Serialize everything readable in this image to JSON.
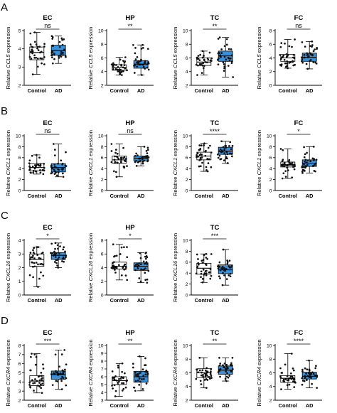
{
  "figure": {
    "panels": [
      {
        "letter": "A",
        "gene": "CCL5"
      },
      {
        "letter": "B",
        "gene": "CXCL1"
      },
      {
        "letter": "C",
        "gene": "CXCL16"
      },
      {
        "letter": "D",
        "gene": "CXCR4"
      }
    ],
    "ylabel_prefix": "Relative",
    "ylabel_suffix": "expression",
    "colors": {
      "control_box": "#ffffff",
      "ad_box": "#3a8fd6",
      "points": "#111111"
    }
  },
  "chart_data": [
    {
      "type": "box",
      "row": "A",
      "title": "EC",
      "significance": "ns",
      "gene": "CCL5",
      "ylim": [
        2,
        5
      ],
      "yticks": [
        2,
        3,
        4,
        5
      ],
      "categories": [
        "Control",
        "AD"
      ],
      "series": [
        {
          "name": "Control",
          "whisker_low": 2.6,
          "q1": 3.4,
          "median": 3.8,
          "q3": 4.1,
          "whisker_high": 4.9
        },
        {
          "name": "AD",
          "whisker_low": 3.2,
          "q1": 3.65,
          "median": 3.9,
          "q3": 4.2,
          "whisker_high": 4.7
        }
      ]
    },
    {
      "type": "box",
      "row": "A",
      "title": "HP",
      "significance": "**",
      "gene": "CCL5",
      "ylim": [
        2,
        10
      ],
      "yticks": [
        2,
        4,
        6,
        8,
        10
      ],
      "categories": [
        "Control",
        "AD"
      ],
      "series": [
        {
          "name": "Control",
          "whisker_low": 3.5,
          "q1": 4.2,
          "median": 4.6,
          "q3": 5.0,
          "whisker_high": 6.1
        },
        {
          "name": "AD",
          "whisker_low": 3.5,
          "q1": 4.5,
          "median": 5.1,
          "q3": 5.6,
          "whisker_high": 7.9
        }
      ]
    },
    {
      "type": "box",
      "row": "A",
      "title": "TC",
      "significance": "**",
      "gene": "CCL5",
      "ylim": [
        2,
        10
      ],
      "yticks": [
        2,
        4,
        6,
        8,
        10
      ],
      "categories": [
        "Control",
        "AD"
      ],
      "series": [
        {
          "name": "Control",
          "whisker_low": 3.5,
          "q1": 4.9,
          "median": 5.4,
          "q3": 6.0,
          "whisker_high": 7.0
        },
        {
          "name": "AD",
          "whisker_low": 3.2,
          "q1": 5.5,
          "median": 6.3,
          "q3": 7.0,
          "whisker_high": 9.0
        }
      ]
    },
    {
      "type": "box",
      "row": "A",
      "title": "FC",
      "significance": "ns",
      "gene": "CCL5",
      "ylim": [
        0,
        8
      ],
      "yticks": [
        0,
        2,
        4,
        6,
        8
      ],
      "categories": [
        "Control",
        "AD"
      ],
      "series": [
        {
          "name": "Control",
          "whisker_low": 2.5,
          "q1": 3.5,
          "median": 4.0,
          "q3": 4.5,
          "whisker_high": 6.7
        },
        {
          "name": "AD",
          "whisker_low": 2.4,
          "q1": 3.5,
          "median": 4.1,
          "q3": 4.7,
          "whisker_high": 6.4
        }
      ]
    },
    {
      "type": "box",
      "row": "B",
      "title": "EC",
      "significance": "ns",
      "gene": "CXCL1",
      "ylim": [
        0,
        10
      ],
      "yticks": [
        0,
        2,
        4,
        6,
        8,
        10
      ],
      "categories": [
        "Control",
        "AD"
      ],
      "series": [
        {
          "name": "Control",
          "whisker_low": 3.0,
          "q1": 3.6,
          "median": 4.2,
          "q3": 4.9,
          "whisker_high": 6.5
        },
        {
          "name": "AD",
          "whisker_low": 2.5,
          "q1": 3.4,
          "median": 4.2,
          "q3": 4.9,
          "whisker_high": 8.5
        }
      ]
    },
    {
      "type": "box",
      "row": "B",
      "title": "HP",
      "significance": "ns",
      "gene": "CXCL1",
      "ylim": [
        0,
        10
      ],
      "yticks": [
        0,
        2,
        4,
        6,
        8,
        10
      ],
      "categories": [
        "Control",
        "AD"
      ],
      "series": [
        {
          "name": "Control",
          "whisker_low": 2.5,
          "q1": 5.0,
          "median": 5.6,
          "q3": 6.3,
          "whisker_high": 8.5
        },
        {
          "name": "AD",
          "whisker_low": 4.5,
          "q1": 5.4,
          "median": 5.9,
          "q3": 6.3,
          "whisker_high": 8.0
        }
      ]
    },
    {
      "type": "box",
      "row": "B",
      "title": "TC",
      "significance": "****",
      "gene": "CXCL1",
      "ylim": [
        0,
        10
      ],
      "yticks": [
        0,
        2,
        4,
        6,
        8,
        10
      ],
      "categories": [
        "Control",
        "AD"
      ],
      "series": [
        {
          "name": "Control",
          "whisker_low": 3.5,
          "q1": 5.6,
          "median": 6.3,
          "q3": 7.0,
          "whisker_high": 8.6
        },
        {
          "name": "AD",
          "whisker_low": 5.0,
          "q1": 6.6,
          "median": 7.2,
          "q3": 7.9,
          "whisker_high": 9.0
        }
      ]
    },
    {
      "type": "box",
      "row": "B",
      "title": "FC",
      "significance": "*",
      "gene": "CXCL1",
      "ylim": [
        0,
        10
      ],
      "yticks": [
        0,
        2,
        4,
        6,
        8,
        10
      ],
      "categories": [
        "Control",
        "AD"
      ],
      "series": [
        {
          "name": "Control",
          "whisker_low": 2.2,
          "q1": 4.3,
          "median": 4.7,
          "q3": 5.2,
          "whisker_high": 7.6
        },
        {
          "name": "AD",
          "whisker_low": 3.2,
          "q1": 4.4,
          "median": 5.0,
          "q3": 5.6,
          "whisker_high": 8.0
        }
      ]
    },
    {
      "type": "box",
      "row": "C",
      "title": "EC",
      "significance": "*",
      "gene": "CXCL16",
      "ylim": [
        0,
        4
      ],
      "yticks": [
        0,
        1,
        2,
        3,
        4
      ],
      "categories": [
        "Control",
        "AD"
      ],
      "series": [
        {
          "name": "Control",
          "whisker_low": 0.6,
          "q1": 2.1,
          "median": 2.6,
          "q3": 3.0,
          "whisker_high": 3.5
        },
        {
          "name": "AD",
          "whisker_low": 2.0,
          "q1": 2.6,
          "median": 2.9,
          "q3": 3.1,
          "whisker_high": 3.8
        }
      ]
    },
    {
      "type": "box",
      "row": "C",
      "title": "HP",
      "significance": "*",
      "gene": "CXCL16",
      "ylim": [
        0,
        8
      ],
      "yticks": [
        0,
        2,
        4,
        6,
        8
      ],
      "categories": [
        "Control",
        "AD"
      ],
      "series": [
        {
          "name": "Control",
          "whisker_low": 2.2,
          "q1": 3.8,
          "median": 4.2,
          "q3": 4.8,
          "whisker_high": 7.4
        },
        {
          "name": "AD",
          "whisker_low": 1.8,
          "q1": 3.6,
          "median": 4.2,
          "q3": 4.7,
          "whisker_high": 6.2
        }
      ]
    },
    {
      "type": "box",
      "row": "C",
      "title": "TC",
      "significance": "***",
      "gene": "CXCL16",
      "ylim": [
        0,
        10
      ],
      "yticks": [
        0,
        2,
        4,
        6,
        8,
        10
      ],
      "categories": [
        "Control",
        "AD"
      ],
      "series": [
        {
          "name": "Control",
          "whisker_low": 2.3,
          "q1": 3.8,
          "median": 4.9,
          "q3": 5.8,
          "whisker_high": 7.5
        },
        {
          "name": "AD",
          "whisker_low": 1.8,
          "q1": 3.9,
          "median": 4.6,
          "q3": 5.5,
          "whisker_high": 8.3
        }
      ]
    },
    {
      "type": "box",
      "row": "D",
      "title": "EC",
      "significance": "***",
      "gene": "CXCR4",
      "ylim": [
        2,
        8
      ],
      "yticks": [
        2,
        3,
        4,
        5,
        6,
        7,
        8
      ],
      "categories": [
        "Control",
        "AD"
      ],
      "series": [
        {
          "name": "Control",
          "whisker_low": 2.8,
          "q1": 3.6,
          "median": 4.1,
          "q3": 4.7,
          "whisker_high": 7.1
        },
        {
          "name": "AD",
          "whisker_low": 3.2,
          "q1": 4.3,
          "median": 4.8,
          "q3": 5.2,
          "whisker_high": 7.5
        }
      ]
    },
    {
      "type": "box",
      "row": "D",
      "title": "HP",
      "significance": "**",
      "gene": "CXCR4",
      "ylim": [
        3,
        10
      ],
      "yticks": [
        3,
        4,
        5,
        6,
        7,
        8,
        9,
        10
      ],
      "categories": [
        "Control",
        "AD"
      ],
      "series": [
        {
          "name": "Control",
          "whisker_low": 3.5,
          "q1": 5.0,
          "median": 5.5,
          "q3": 6.0,
          "whisker_high": 7.7
        },
        {
          "name": "AD",
          "whisker_low": 4.2,
          "q1": 5.3,
          "median": 6.0,
          "q3": 6.7,
          "whisker_high": 8.6
        }
      ]
    },
    {
      "type": "box",
      "row": "D",
      "title": "TC",
      "significance": "**",
      "gene": "CXCR4",
      "ylim": [
        2,
        10
      ],
      "yticks": [
        2,
        4,
        6,
        8,
        10
      ],
      "categories": [
        "Control",
        "AD"
      ],
      "series": [
        {
          "name": "Control",
          "whisker_low": 3.8,
          "q1": 5.3,
          "median": 6.0,
          "q3": 6.6,
          "whisker_high": 8.2
        },
        {
          "name": "AD",
          "whisker_low": 4.8,
          "q1": 5.8,
          "median": 6.4,
          "q3": 7.0,
          "whisker_high": 8.2
        }
      ]
    },
    {
      "type": "box",
      "row": "D",
      "title": "FC",
      "significance": "****",
      "gene": "CXCR4",
      "ylim": [
        2,
        10
      ],
      "yticks": [
        2,
        4,
        6,
        8,
        10
      ],
      "categories": [
        "Control",
        "AD"
      ],
      "series": [
        {
          "name": "Control",
          "whisker_low": 3.6,
          "q1": 4.6,
          "median": 5.2,
          "q3": 5.6,
          "whisker_high": 8.8
        },
        {
          "name": "AD",
          "whisker_low": 3.8,
          "q1": 5.1,
          "median": 5.5,
          "q3": 6.1,
          "whisker_high": 7.8
        }
      ]
    }
  ]
}
